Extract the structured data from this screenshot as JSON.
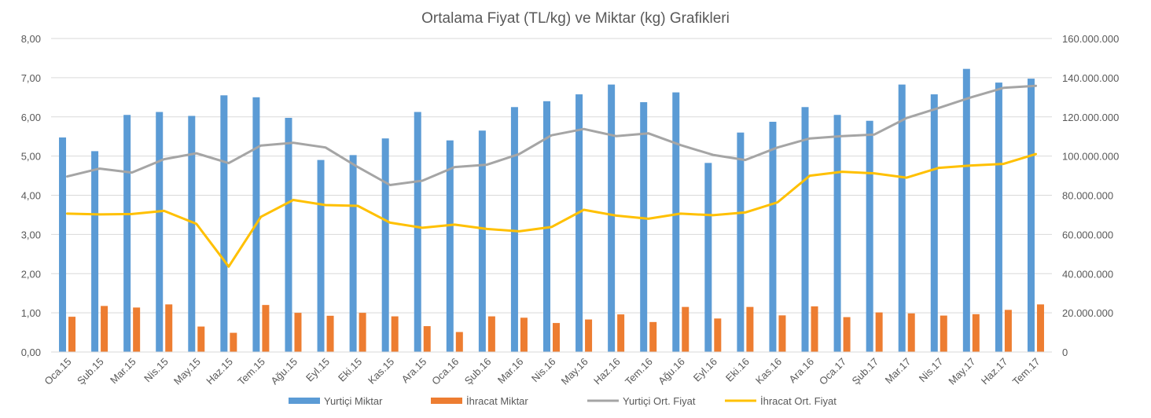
{
  "chart_data": {
    "type": "bar",
    "title": "Ortalama Fiyat (TL/kg) ve Miktar (kg) Grafikleri",
    "categories": [
      "Oca.15",
      "Şub.15",
      "Mar.15",
      "Nis.15",
      "May.15",
      "Haz.15",
      "Tem.15",
      "Ağu.15",
      "Eyl.15",
      "Eki.15",
      "Kas.15",
      "Ara.15",
      "Oca.16",
      "Şub.16",
      "Mar.16",
      "Nis.16",
      "May.16",
      "Haz.16",
      "Tem.16",
      "Ağu.16",
      "Eyl.16",
      "Eki.16",
      "Kas.16",
      "Ara.16",
      "Oca.17",
      "Şub.17",
      "Mar.17",
      "Nis.17",
      "May.17",
      "Haz.17",
      "Tem.17"
    ],
    "left_axis": {
      "min": 0,
      "max": 8,
      "step": 1,
      "tick_labels": [
        "0,00",
        "1,00",
        "2,00",
        "3,00",
        "4,00",
        "5,00",
        "6,00",
        "7,00",
        "8,00"
      ]
    },
    "right_axis": {
      "min": 0,
      "max": 160000000,
      "step": 20000000,
      "tick_labels": [
        "0",
        "20.000.000",
        "40.000.000",
        "60.000.000",
        "80.000.000",
        "100.000.000",
        "120.000.000",
        "140.000.000",
        "160.000.000"
      ]
    },
    "grid": true,
    "legend_position": "bottom",
    "series": [
      {
        "name": "Yurtiçi Miktar",
        "kind": "bar",
        "axis": "right",
        "color": "#5B9BD5",
        "values": [
          109500000,
          102500000,
          121000000,
          122500000,
          120500000,
          131000000,
          130000000,
          119500000,
          98000000,
          100500000,
          109000000,
          122500000,
          108000000,
          113000000,
          125000000,
          128000000,
          131500000,
          136500000,
          127500000,
          132500000,
          96500000,
          112000000,
          117500000,
          125000000,
          121000000,
          118000000,
          136500000,
          131500000,
          144500000,
          137500000,
          139500000
        ]
      },
      {
        "name": "İhracat Miktar",
        "kind": "bar",
        "axis": "right",
        "color": "#ED7D31",
        "values": [
          18000000,
          23500000,
          22700000,
          24300000,
          13000000,
          9800000,
          24000000,
          20000000,
          18500000,
          20000000,
          18200000,
          13200000,
          10200000,
          18200000,
          17500000,
          14800000,
          16600000,
          19200000,
          15300000,
          23000000,
          17100000,
          23000000,
          18700000,
          23300000,
          17800000,
          20200000,
          19700000,
          18600000,
          19300000,
          21500000,
          24300000
        ]
      },
      {
        "name": "Yurtiçi Ort. Fiyat",
        "kind": "line",
        "axis": "left",
        "color": "#A5A5A5",
        "values": [
          4.48,
          4.68,
          4.58,
          4.92,
          5.07,
          4.82,
          5.27,
          5.34,
          5.22,
          4.72,
          4.26,
          4.37,
          4.72,
          4.78,
          5.05,
          5.53,
          5.69,
          5.51,
          5.58,
          5.28,
          5.03,
          4.9,
          5.22,
          5.45,
          5.51,
          5.55,
          5.97,
          6.23,
          6.5,
          6.74,
          6.79
        ]
      },
      {
        "name": "İhracat Ort. Fiyat",
        "kind": "line",
        "axis": "left",
        "color": "#FFC000",
        "values": [
          3.53,
          3.51,
          3.52,
          3.6,
          3.27,
          2.18,
          3.45,
          3.88,
          3.75,
          3.73,
          3.3,
          3.17,
          3.25,
          3.14,
          3.08,
          3.19,
          3.63,
          3.48,
          3.4,
          3.53,
          3.49,
          3.56,
          3.82,
          4.5,
          4.6,
          4.56,
          4.45,
          4.7,
          4.76,
          4.8,
          5.05
        ]
      }
    ]
  }
}
